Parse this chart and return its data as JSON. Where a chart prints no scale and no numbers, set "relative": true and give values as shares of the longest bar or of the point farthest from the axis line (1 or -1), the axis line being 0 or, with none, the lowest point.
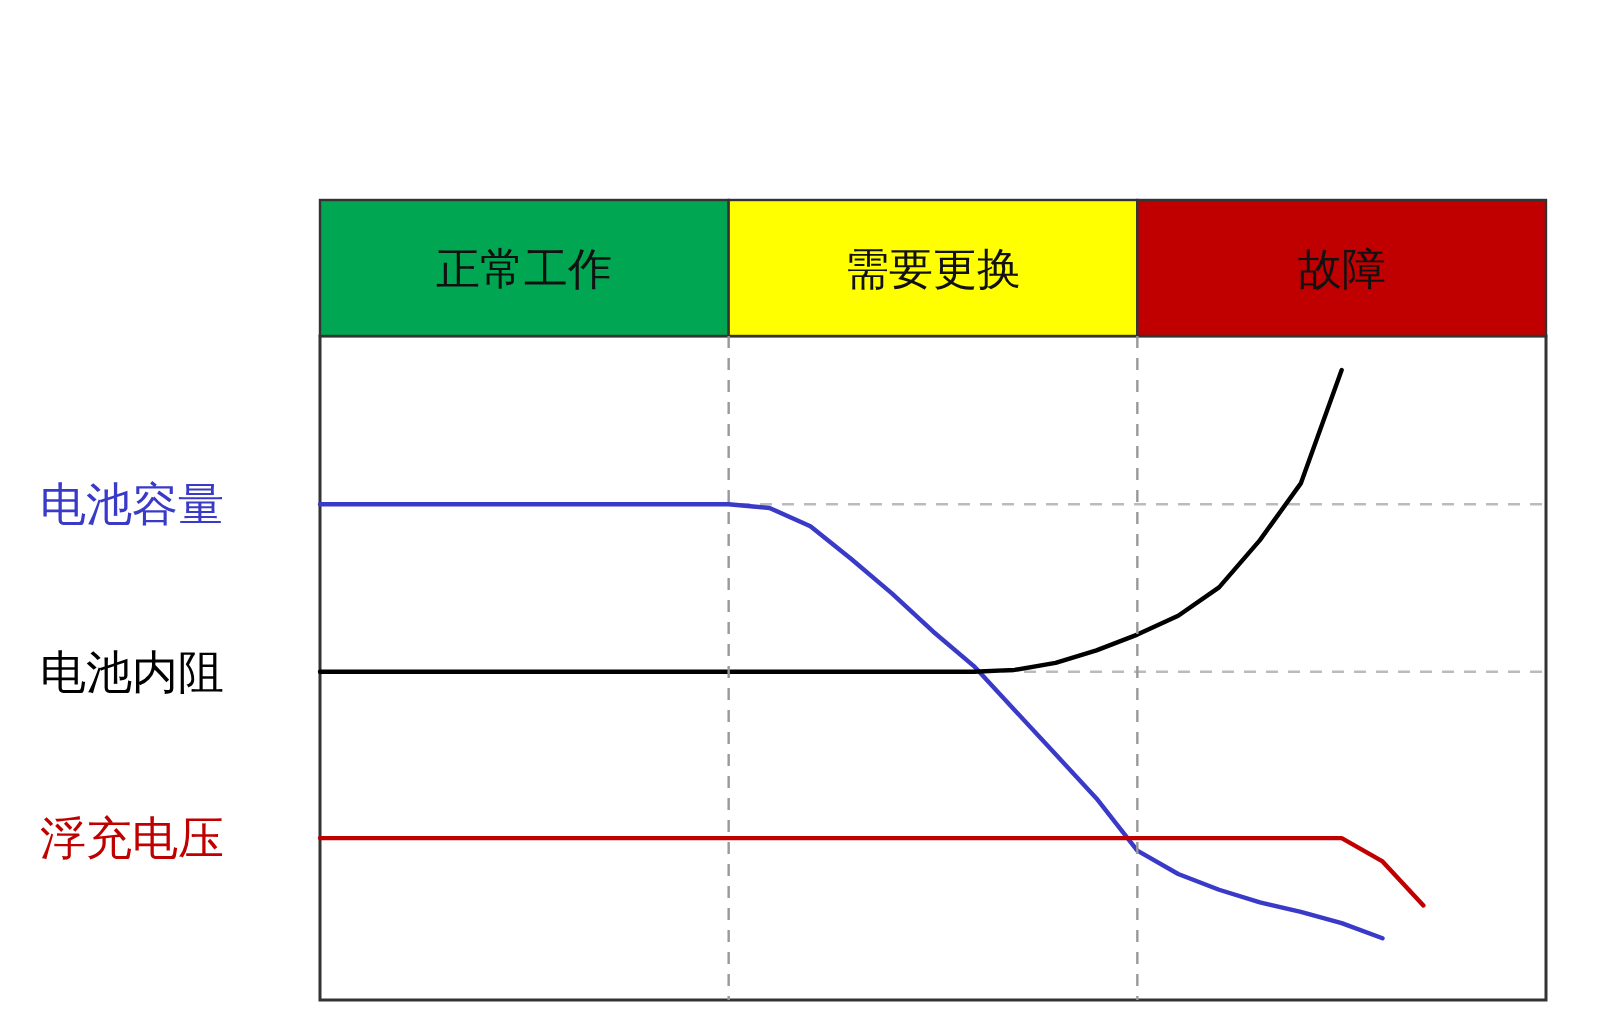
{
  "chart_data": [
    {
      "type": "line",
      "relative": true,
      "categories": [
        null,
        null,
        null,
        null,
        null,
        null,
        null,
        null,
        null,
        null,
        null,
        null,
        null,
        null,
        null,
        null,
        null,
        null,
        null,
        null,
        null,
        null,
        null,
        null,
        null,
        null,
        null,
        null,
        null,
        null,
        null
      ],
      "series": [
        {
          "name": "电池容量",
          "color": "#3a3ac8",
          "values": [
            0.787,
            0.787,
            0.787,
            0.787,
            0.787,
            0.787,
            0.787,
            0.787,
            0.787,
            0.787,
            0.787,
            0.781,
            0.752,
            0.7,
            0.645,
            0.585,
            0.53,
            0.46,
            0.39,
            0.32,
            0.237,
            0.2,
            0.175,
            0.155,
            0.14,
            0.122,
            0.098,
            null,
            null,
            null,
            null
          ]
        },
        {
          "name": "电池内阻",
          "color": "#000000",
          "values": [
            0.521,
            0.521,
            0.521,
            0.521,
            0.521,
            0.521,
            0.521,
            0.521,
            0.521,
            0.521,
            0.521,
            0.521,
            0.521,
            0.521,
            0.521,
            0.521,
            0.521,
            0.524,
            0.535,
            0.555,
            0.58,
            0.61,
            0.655,
            0.73,
            0.82,
            1.0,
            null,
            null,
            null,
            null,
            null
          ]
        },
        {
          "name": "浮充电压",
          "color": "#c00000",
          "values": [
            0.257,
            0.257,
            0.257,
            0.257,
            0.257,
            0.257,
            0.257,
            0.257,
            0.257,
            0.257,
            0.257,
            0.257,
            0.257,
            0.257,
            0.257,
            0.257,
            0.257,
            0.257,
            0.257,
            0.257,
            0.257,
            0.257,
            0.257,
            0.257,
            0.257,
            0.257,
            0.22,
            0.15,
            null,
            null,
            null
          ]
        }
      ],
      "ref_lines": [
        {
          "axis": "y",
          "value": 0.787,
          "color": "#bbbbbb",
          "line_style": "dashed"
        },
        {
          "axis": "y",
          "value": 0.521,
          "color": "#bbbbbb",
          "line_style": "dashed"
        }
      ]
    },
    {
      "type": "other",
      "categories": [
        "正常工作",
        "需要更换",
        "故障"
      ],
      "colors": [
        "#00a651",
        "#ffff00",
        "#c00000"
      ]
    }
  ]
}
